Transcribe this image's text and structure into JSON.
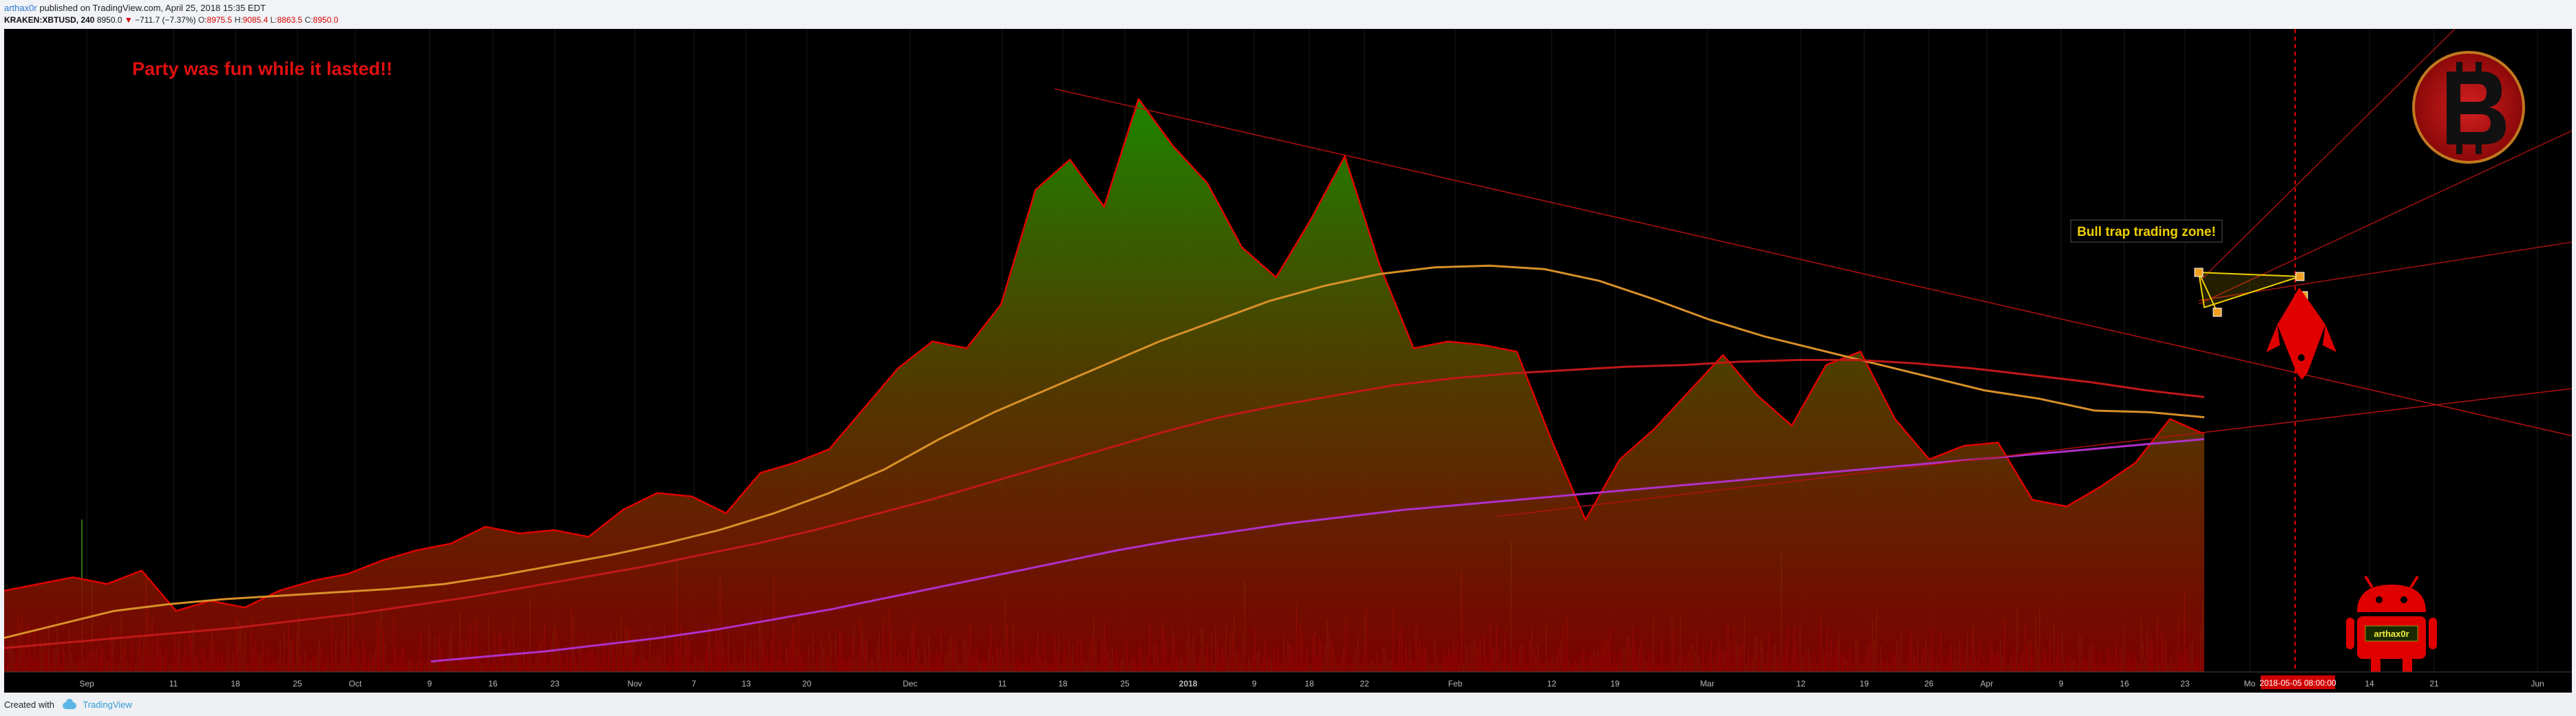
{
  "header": {
    "author": "arthax0r",
    "published": "published on TradingView.com, April 25, 2018 15:35 EDT",
    "symbol": "KRAKEN:XBTUSD, 240",
    "last": "8950.0",
    "change": "−711.7 (−7.37%)",
    "o_label": "O:",
    "o_value": "8975.5",
    "h_label": "H:",
    "h_value": "9085.4",
    "l_label": "L:",
    "l_value": "8863.5",
    "c_label": "C:",
    "c_value": "8950.0"
  },
  "footer": {
    "created": "Created with",
    "brand": "TradingView"
  },
  "annotations": {
    "party": "Party was fun while it lasted!!",
    "bulltrap": "Bull trap trading zone!",
    "android_label": "arthax0r",
    "date_badge": "2018-05-05 08:00:00"
  },
  "colors": {
    "price": "#e00000",
    "ma_fast": "#d89028",
    "ma_mid": "#c01818",
    "ma_slow": "#b030c8",
    "bull_box": "#f0d000"
  },
  "chart_data": {
    "type": "area",
    "title": "",
    "x_axis_ticks": [
      "Sep",
      "11",
      "18",
      "25",
      "Oct",
      "9",
      "16",
      "23",
      "Nov",
      "7",
      "13",
      "20",
      "Dec",
      "11",
      "18",
      "25",
      "2018",
      "9",
      "18",
      "22",
      "Feb",
      "12",
      "19",
      "Mar",
      "12",
      "19",
      "26",
      "Apr",
      "9",
      "16",
      "23",
      "Mo",
      "14",
      "21",
      "Jun"
    ],
    "ylim": [
      2500,
      20000
    ],
    "grid": false,
    "series": [
      {
        "values": [
          4300,
          4500,
          4700,
          4500,
          4900,
          3700,
          4000,
          3800,
          4300,
          4600,
          4800,
          5200,
          5500,
          5700,
          6200,
          6000,
          6100,
          5900,
          6700,
          7200,
          7100,
          6600,
          7800,
          8100,
          8500,
          9700,
          10900,
          11700,
          11500,
          12800,
          16200,
          17100,
          15700,
          18900,
          17500,
          16400,
          14500,
          13600,
          15300,
          17200,
          14000,
          11500,
          11700,
          11600,
          11400,
          8800,
          6400,
          8200,
          9100,
          10200,
          11300,
          10100,
          9200,
          11000,
          11400,
          9400,
          8200,
          8600,
          8700,
          7000,
          6800,
          7400,
          8100,
          9400,
          8950
        ]
      },
      {
        "values": [
          2900,
          3300,
          3700,
          3900,
          4050,
          4150,
          4250,
          4350,
          4500,
          4750,
          5050,
          5350,
          5700,
          6100,
          6600,
          7200,
          7900,
          8800,
          9600,
          10300,
          11000,
          11700,
          12300,
          12900,
          13350,
          13700,
          13900,
          13950,
          13850,
          13500,
          12950,
          12350,
          11850,
          11450,
          11050,
          10650,
          10250,
          10000,
          9650,
          9600,
          9450
        ]
      },
      {
        "values": [
          2600,
          2750,
          2900,
          3050,
          3200,
          3400,
          3600,
          3850,
          4100,
          4400,
          4700,
          5000,
          5350,
          5700,
          6100,
          6550,
          7000,
          7500,
          8000,
          8500,
          9000,
          9450,
          9800,
          10100,
          10400,
          10600,
          10750,
          10850,
          10950,
          11000,
          11100,
          11150,
          11150,
          11050,
          10900,
          10700,
          10500,
          10250,
          10050
        ]
      },
      {
        "values": [
          2200,
          2350,
          2500,
          2700,
          2900,
          3150,
          3450,
          3750,
          4100,
          4450,
          4800,
          5150,
          5500,
          5800,
          6050,
          6300,
          6500,
          6700,
          6850,
          7000,
          7150,
          7300,
          7450,
          7600,
          7750,
          7900,
          8050,
          8200,
          8350,
          8500,
          8650,
          8800
        ]
      }
    ],
    "trend_lines": [
      {
        "from": [
          "Dec 16",
          19200
        ],
        "to": [
          "Jun",
          8500
        ]
      },
      {
        "from": [
          "Feb 6",
          6500
        ],
        "to": [
          "Jun",
          10200
        ]
      }
    ]
  }
}
